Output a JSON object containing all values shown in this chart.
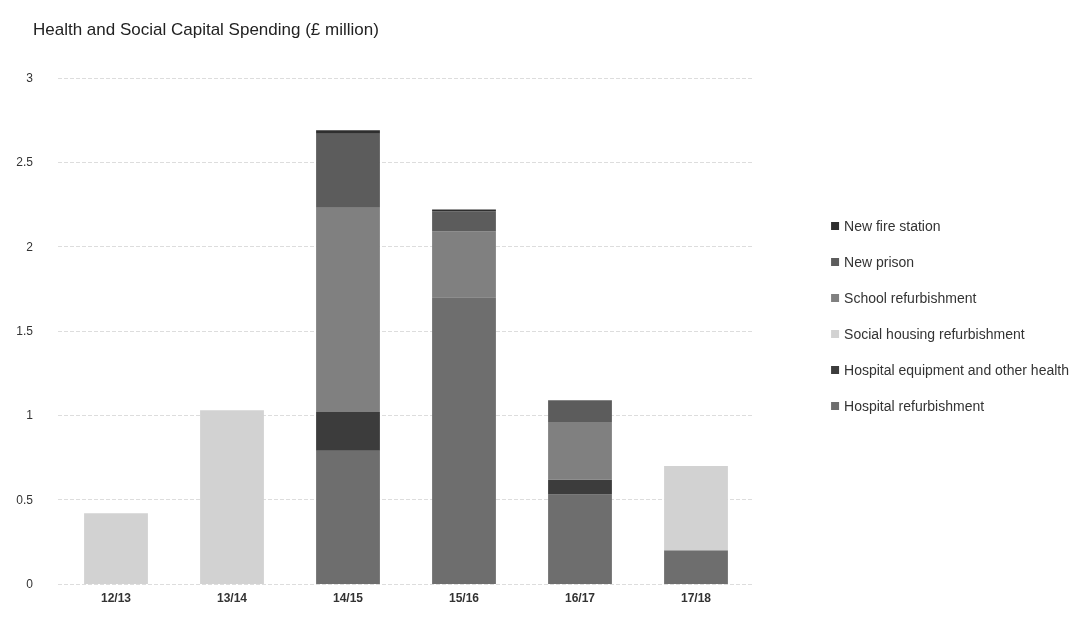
{
  "chart_data": {
    "type": "bar",
    "title": "Health and Social Capital Spending (£ million)",
    "categories": [
      "12/13",
      "13/14",
      "14/15",
      "15/16",
      "16/17",
      "17/18"
    ],
    "stacked": true,
    "ylim": [
      0,
      3
    ],
    "yticks": [
      0,
      0.5,
      1,
      1.5,
      2,
      2.5,
      3
    ],
    "grid": "y",
    "legend": "right",
    "series": [
      {
        "name": "Hospital refurbishment",
        "color": "#6e6e6e",
        "values": [
          null,
          null,
          0.79,
          1.7,
          0.53,
          0.2
        ]
      },
      {
        "name": "Hospital equipment and other health",
        "color": "#3c3c3c",
        "values": [
          null,
          null,
          0.23,
          null,
          0.09,
          null
        ]
      },
      {
        "name": "Social housing refurbishment",
        "color": "#d2d2d2",
        "values": [
          0.42,
          1.03,
          null,
          null,
          null,
          0.5
        ]
      },
      {
        "name": "School refurbishment",
        "color": "#808080",
        "values": [
          null,
          null,
          1.21,
          0.39,
          0.34,
          null
        ]
      },
      {
        "name": "New prison",
        "color": "#5c5c5c",
        "values": [
          null,
          null,
          0.44,
          0.12,
          0.13,
          null
        ]
      },
      {
        "name": "New fire station",
        "color": "#2e2e2e",
        "values": [
          null,
          null,
          0.02,
          0.01,
          null,
          null
        ]
      }
    ]
  }
}
